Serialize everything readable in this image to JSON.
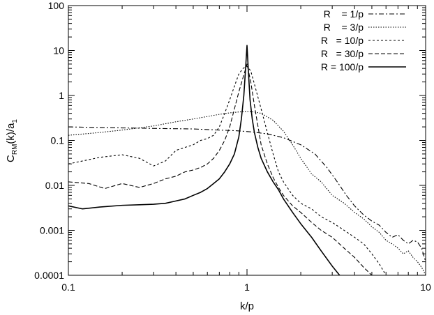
{
  "chart_data": {
    "type": "line",
    "title": "",
    "xlabel": "k/p",
    "ylabel": "C_RM(k)/a_1",
    "ylabel_parts": {
      "main": "C",
      "sub1": "RM",
      "mid": "(k)/a",
      "sub2": "1"
    },
    "x_scale": "log",
    "y_scale": "log",
    "xlim": [
      0.1,
      10
    ],
    "ylim": [
      0.0001,
      100
    ],
    "x_ticks": [
      0.1,
      1,
      10
    ],
    "x_tick_labels": [
      "0.1",
      "1",
      "10"
    ],
    "y_ticks": [
      0.0001,
      0.001,
      0.01,
      0.1,
      1,
      10,
      100
    ],
    "y_tick_labels": [
      "0.0001",
      "0.001",
      "0.01",
      "0.1",
      "1",
      "10",
      "100"
    ],
    "grid": false,
    "legend_position": "top-right",
    "series": [
      {
        "name": "R    = 1/p",
        "style": "dashdot",
        "x": [
          0.1,
          0.2,
          0.3,
          0.5,
          0.7,
          0.85,
          0.95,
          1.05,
          1.3,
          1.6,
          2.0,
          2.4,
          2.8,
          3.2,
          3.6,
          4.0,
          4.5,
          5.0,
          5.5,
          6.0,
          6.5,
          7.0,
          7.5,
          8.0,
          8.5,
          9.0,
          9.5,
          10.0
        ],
        "y": [
          0.2,
          0.19,
          0.185,
          0.18,
          0.17,
          0.165,
          0.16,
          0.155,
          0.14,
          0.115,
          0.08,
          0.05,
          0.025,
          0.012,
          0.006,
          0.0035,
          0.0022,
          0.0016,
          0.0013,
          0.0009,
          0.0007,
          0.0008,
          0.0006,
          0.0005,
          0.0006,
          0.00055,
          0.0004,
          0.0002
        ]
      },
      {
        "name": "R    = 3/p",
        "style": "dotted",
        "x": [
          0.1,
          0.15,
          0.2,
          0.3,
          0.4,
          0.5,
          0.6,
          0.7,
          0.8,
          0.9,
          1.0,
          1.1,
          1.2,
          1.4,
          1.6,
          1.8,
          2.0,
          2.3,
          2.6,
          3.0,
          3.5,
          4.0,
          4.5,
          5.0,
          5.5,
          6.0,
          6.5,
          7.0,
          7.5,
          8.0,
          8.5,
          9.0,
          9.5,
          10.0
        ],
        "y": [
          0.13,
          0.15,
          0.17,
          0.21,
          0.26,
          0.3,
          0.34,
          0.38,
          0.41,
          0.43,
          0.44,
          0.43,
          0.4,
          0.28,
          0.16,
          0.08,
          0.04,
          0.018,
          0.012,
          0.006,
          0.004,
          0.0025,
          0.0018,
          0.0012,
          0.0009,
          0.0006,
          0.0005,
          0.0004,
          0.0003,
          0.00035,
          0.00025,
          0.0002,
          0.00015,
          0.0001
        ]
      },
      {
        "name": "R   = 10/p",
        "style": "short-dash",
        "x": [
          0.1,
          0.15,
          0.2,
          0.25,
          0.3,
          0.35,
          0.4,
          0.45,
          0.5,
          0.55,
          0.6,
          0.65,
          0.7,
          0.75,
          0.8,
          0.85,
          0.9,
          0.95,
          1.0,
          1.05,
          1.1,
          1.2,
          1.3,
          1.4,
          1.5,
          1.6,
          1.8,
          2.0,
          2.3,
          2.6,
          3.0,
          3.5,
          4.0,
          4.5,
          5.0,
          5.5,
          6.0
        ],
        "y": [
          0.03,
          0.042,
          0.048,
          0.04,
          0.027,
          0.035,
          0.06,
          0.07,
          0.08,
          0.1,
          0.11,
          0.13,
          0.2,
          0.4,
          0.8,
          1.6,
          3.0,
          4.0,
          4.5,
          3.5,
          1.8,
          0.5,
          0.15,
          0.05,
          0.02,
          0.012,
          0.006,
          0.004,
          0.003,
          0.002,
          0.0015,
          0.001,
          0.0007,
          0.0005,
          0.0003,
          0.00018,
          0.0001
        ]
      },
      {
        "name": "R   = 30/p",
        "style": "dashed",
        "x": [
          0.1,
          0.13,
          0.16,
          0.2,
          0.25,
          0.3,
          0.35,
          0.4,
          0.45,
          0.5,
          0.55,
          0.6,
          0.65,
          0.7,
          0.75,
          0.8,
          0.85,
          0.9,
          0.95,
          1.0,
          1.05,
          1.1,
          1.2,
          1.3,
          1.4,
          1.5,
          1.6,
          1.8,
          2.0,
          2.3,
          2.6,
          3.0,
          3.5,
          4.0,
          4.5,
          5.0
        ],
        "y": [
          0.012,
          0.011,
          0.0085,
          0.011,
          0.009,
          0.011,
          0.014,
          0.016,
          0.02,
          0.022,
          0.025,
          0.03,
          0.04,
          0.06,
          0.1,
          0.2,
          0.5,
          1.2,
          2.5,
          5.0,
          2.0,
          0.6,
          0.08,
          0.03,
          0.015,
          0.009,
          0.006,
          0.0035,
          0.0025,
          0.0015,
          0.001,
          0.0007,
          0.0004,
          0.00025,
          0.00015,
          0.0001
        ]
      },
      {
        "name": "R = 100/p",
        "style": "solid",
        "x": [
          0.1,
          0.12,
          0.15,
          0.2,
          0.25,
          0.3,
          0.35,
          0.4,
          0.45,
          0.5,
          0.55,
          0.6,
          0.65,
          0.7,
          0.75,
          0.8,
          0.85,
          0.9,
          0.93,
          0.96,
          0.98,
          1.0,
          1.02,
          1.04,
          1.07,
          1.1,
          1.15,
          1.2,
          1.3,
          1.4,
          1.5,
          1.6,
          1.8,
          2.0,
          2.3,
          2.6,
          3.0,
          3.3
        ],
        "y": [
          0.0035,
          0.003,
          0.0033,
          0.0036,
          0.0037,
          0.0038,
          0.004,
          0.0045,
          0.005,
          0.006,
          0.007,
          0.0085,
          0.011,
          0.014,
          0.02,
          0.03,
          0.05,
          0.12,
          0.3,
          1.0,
          3.5,
          13.0,
          3.0,
          0.8,
          0.3,
          0.15,
          0.07,
          0.04,
          0.02,
          0.012,
          0.008,
          0.005,
          0.0025,
          0.0014,
          0.0007,
          0.00035,
          0.00016,
          0.0001
        ]
      }
    ]
  }
}
